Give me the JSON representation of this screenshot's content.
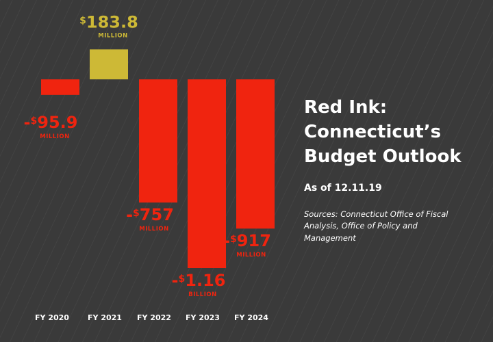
{
  "colors": {
    "background": "#3a3a3a",
    "negative": "#f0240f",
    "positive": "#cdb936",
    "text": "#ffffff"
  },
  "title_lines": [
    "Red Ink:",
    "Connecticut’s",
    "Budget Outlook"
  ],
  "as_of": "As of 12.11.19",
  "sources": "Sources: Connecticut Office of Fiscal Analysis, Office of Policy and Management",
  "chart_data": {
    "type": "bar",
    "categories": [
      "FY 2020",
      "FY 2021",
      "FY 2022",
      "FY 2023",
      "FY 2024"
    ],
    "values": [
      -95.9,
      183.8,
      -757,
      -1160,
      -917
    ],
    "units": "millions of dollars",
    "labels": [
      {
        "sign": "-",
        "currency": "$",
        "amount": "95.9",
        "unit": "MILLION"
      },
      {
        "sign": "",
        "currency": "$",
        "amount": "183.8",
        "unit": "MILLION"
      },
      {
        "sign": "-",
        "currency": "$",
        "amount": "757",
        "unit": "MILLION"
      },
      {
        "sign": "-",
        "currency": "$",
        "amount": "1.16",
        "unit": "BILLION"
      },
      {
        "sign": "-",
        "currency": "$",
        "amount": "917",
        "unit": "MILLION"
      }
    ]
  }
}
